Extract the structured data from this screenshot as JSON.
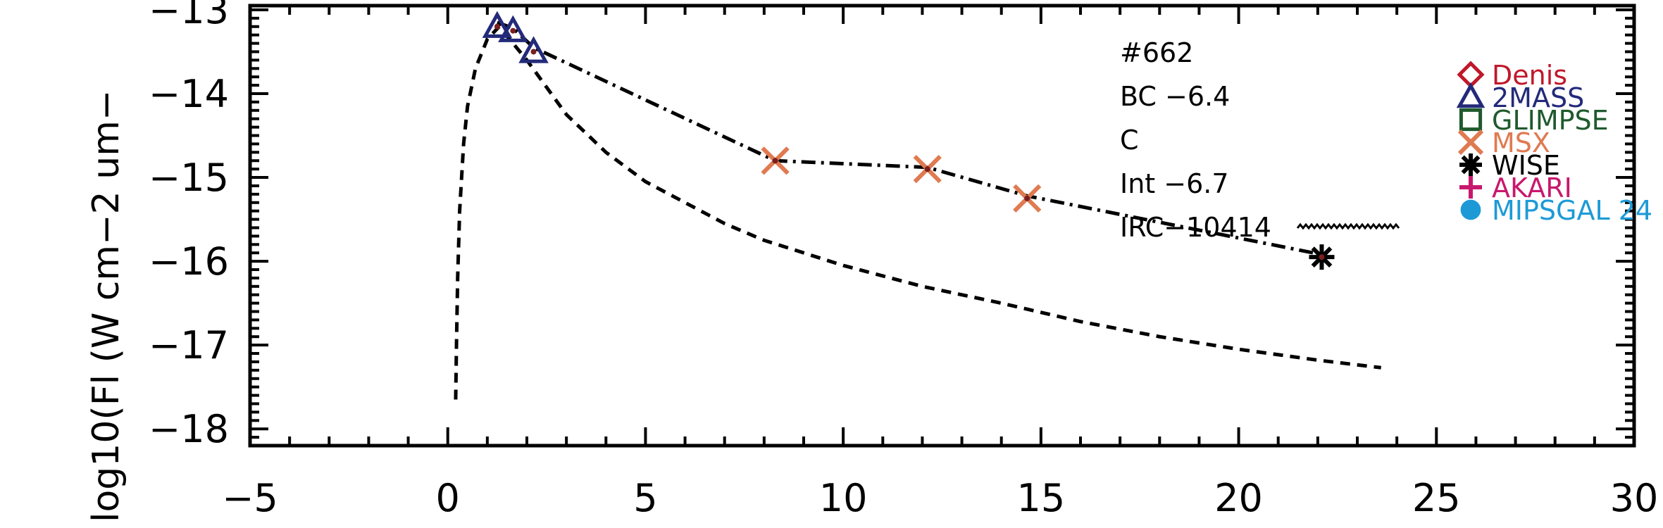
{
  "chart_data": {
    "type": "scatter",
    "ylabel": "log10(Fl (W cm−2 um−",
    "xlim": [
      -5,
      30
    ],
    "ylim": [
      -18.2,
      -12.95
    ],
    "x_ticks": [
      "−5",
      "0",
      "5",
      "10",
      "15",
      "20",
      "25",
      "30"
    ],
    "x_tick_values": [
      -5,
      0,
      5,
      10,
      15,
      20,
      25,
      30
    ],
    "y_ticks": [
      "−13",
      "−14",
      "−15",
      "−16",
      "−17",
      "−18"
    ],
    "y_tick_values": [
      -13,
      -14,
      -15,
      -16,
      -17,
      -18
    ],
    "annotations": [
      "#662",
      "BC −6.4",
      "C",
      "Int −6.7",
      "IRC−10414"
    ],
    "legend": {
      "placement": "right",
      "entries": [
        {
          "label": "Denis",
          "marker": "diamond",
          "color": "#c0182a"
        },
        {
          "label": "2MASS",
          "marker": "triangle",
          "color": "#232a7a"
        },
        {
          "label": "GLIMPSE",
          "marker": "square",
          "color": "#1f5a2e"
        },
        {
          "label": "MSX",
          "marker": "x",
          "color": "#e07a50"
        },
        {
          "label": "WISE",
          "marker": "asterisk",
          "color": "#000000"
        },
        {
          "label": "AKARI",
          "marker": "plus",
          "color": "#c8186e"
        },
        {
          "label": "MIPSGAL 24",
          "marker": "circle",
          "color": "#1d9ad6"
        }
      ]
    },
    "series": [
      {
        "name": "2MASS",
        "marker": "triangle",
        "color": "#232a7a",
        "x": [
          1.25,
          1.65,
          2.17
        ],
        "y": [
          -13.2,
          -13.25,
          -13.5
        ]
      },
      {
        "name": "MSX",
        "marker": "x",
        "color": "#e07a50",
        "x": [
          8.28,
          12.13,
          14.65
        ],
        "y": [
          -14.8,
          -14.9,
          -15.25
        ]
      },
      {
        "name": "WISE",
        "marker": "asterisk",
        "color": "#000000",
        "x": [
          22.1
        ],
        "y": [
          -15.95
        ]
      }
    ],
    "lines": [
      {
        "style": "dash-dot",
        "x": [
          1.25,
          1.65,
          2.17,
          8.28,
          12.13,
          14.65,
          22.1
        ],
        "y": [
          -13.15,
          -13.22,
          -13.45,
          -14.8,
          -14.88,
          -15.22,
          -15.92
        ]
      },
      {
        "style": "dashed",
        "x": [
          0.2,
          0.22,
          0.25,
          0.3,
          0.4,
          0.5,
          0.7,
          1.0,
          1.3,
          2.0,
          3.0,
          4.0,
          5.0,
          6.0,
          7.0,
          8.0,
          10.0,
          12.0,
          14.0,
          16.0,
          18.0,
          20.0,
          22.0,
          23.6
        ],
        "y": [
          -17.65,
          -17.0,
          -16.2,
          -15.4,
          -14.6,
          -14.15,
          -13.7,
          -13.35,
          -13.2,
          -13.6,
          -14.25,
          -14.7,
          -15.05,
          -15.3,
          -15.55,
          -15.75,
          -16.05,
          -16.3,
          -16.5,
          -16.72,
          -16.9,
          -17.05,
          -17.18,
          -17.27
        ]
      }
    ]
  }
}
